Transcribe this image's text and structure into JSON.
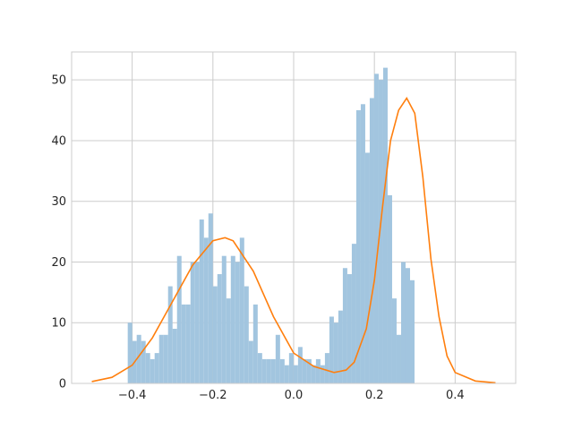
{
  "chart_data": {
    "type": "bar",
    "title": "",
    "xlabel": "",
    "ylabel": "",
    "xlim": [
      -0.55,
      0.55
    ],
    "ylim": [
      0,
      54.6
    ],
    "grid": true,
    "x_ticks": [
      {
        "value": -0.4,
        "label": "−0.4"
      },
      {
        "value": -0.2,
        "label": "−0.2"
      },
      {
        "value": 0.0,
        "label": "0.0"
      },
      {
        "value": 0.2,
        "label": "0.2"
      },
      {
        "value": 0.4,
        "label": "0.4"
      }
    ],
    "y_ticks": [
      {
        "value": 0,
        "label": "0"
      },
      {
        "value": 10,
        "label": "10"
      },
      {
        "value": 20,
        "label": "20"
      },
      {
        "value": 30,
        "label": "30"
      },
      {
        "value": 40,
        "label": "40"
      },
      {
        "value": 50,
        "label": "50"
      }
    ],
    "histogram": {
      "bin_start": -0.411,
      "bin_width": 0.0111,
      "counts": [
        10,
        7,
        8,
        7,
        5,
        4,
        5,
        8,
        8,
        16,
        9,
        21,
        13,
        13,
        20,
        20,
        27,
        24,
        28,
        16,
        18,
        21,
        14,
        21,
        20,
        24,
        16,
        7,
        13,
        5,
        4,
        4,
        4,
        8,
        4,
        3,
        5,
        3,
        6,
        4,
        4,
        3,
        4,
        3,
        5,
        11,
        10,
        12,
        19,
        18,
        23,
        45,
        46,
        38,
        47,
        51,
        50,
        52,
        31,
        14,
        8,
        20,
        19,
        17
      ],
      "color": "#a2c5df"
    },
    "kde_line": {
      "x": [
        -0.5,
        -0.45,
        -0.4,
        -0.35,
        -0.3,
        -0.25,
        -0.2,
        -0.17,
        -0.15,
        -0.1,
        -0.05,
        0.0,
        0.05,
        0.1,
        0.13,
        0.15,
        0.18,
        0.2,
        0.22,
        0.24,
        0.26,
        0.28,
        0.3,
        0.32,
        0.34,
        0.36,
        0.38,
        0.4,
        0.45,
        0.5
      ],
      "y": [
        0.3,
        1.0,
        3.0,
        7.5,
        13.5,
        19.5,
        23.5,
        24.0,
        23.5,
        18.5,
        11.0,
        5.0,
        2.8,
        1.8,
        2.2,
        3.5,
        9.0,
        17.0,
        29.0,
        40.0,
        45.0,
        47.0,
        44.5,
        34.0,
        20.5,
        11.0,
        4.5,
        1.8,
        0.4,
        0.1
      ],
      "color": "#ff7f0e"
    }
  }
}
